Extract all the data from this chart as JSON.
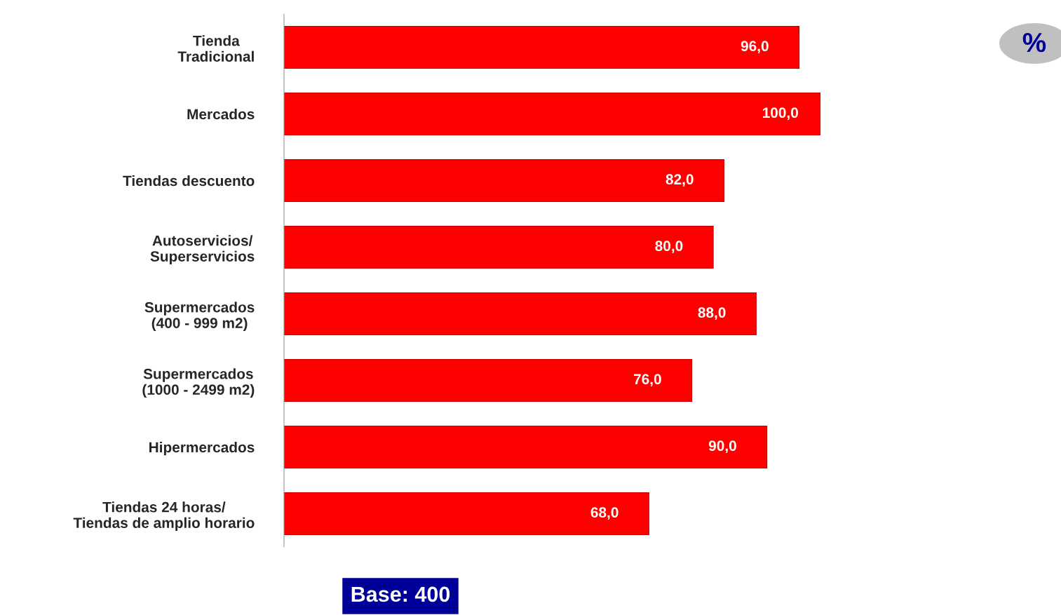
{
  "chart_data": {
    "type": "bar",
    "orientation": "horizontal",
    "categories": [
      "Tienda\nTradicional",
      "Mercados",
      "Tiendas descuento",
      "Autoservicios/\nSuperservicios",
      "Supermercados\n(400 - 999 m2)",
      "Supermercados\n(1000 - 2499 m2)",
      "Hipermercados",
      "Tiendas 24 horas/\nTiendas de amplio horario"
    ],
    "values": [
      96.0,
      100.0,
      82.0,
      80.0,
      88.0,
      76.0,
      90.0,
      68.0
    ],
    "color": "#ff0000",
    "value_labels": [
      "96,0",
      "100,0",
      "82,0",
      "80,0",
      "88,0",
      "76,0",
      "90,0",
      "68,0"
    ],
    "annotations": [
      "Base: 400",
      "%"
    ],
    "grid": false,
    "legend": false
  }
}
